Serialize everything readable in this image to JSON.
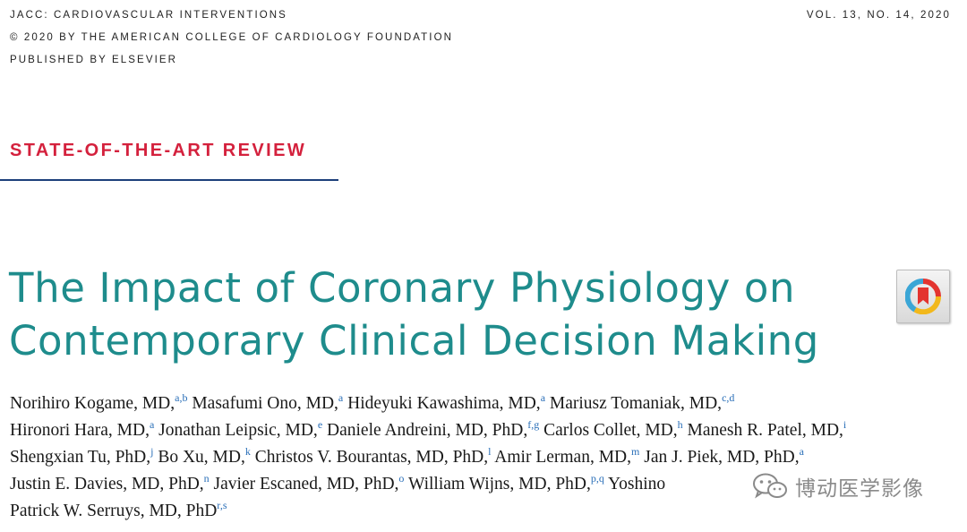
{
  "header": {
    "journal": "JACC: CARDIOVASCULAR INTERVENTIONS",
    "copyright": "© 2020 BY THE AMERICAN COLLEGE OF CARDIOLOGY FOUNDATION",
    "publisher": "PUBLISHED BY ELSEVIER",
    "volume": "VOL. 13, NO. 14, 2020"
  },
  "article": {
    "section": "STATE-OF-THE-ART REVIEW",
    "title_line1": "The Impact of Coronary Physiology on",
    "title_line2": "Contemporary Clinical Decision Making"
  },
  "authors": [
    {
      "text": "Norihiro Kogame, MD,",
      "sup": "a,b"
    },
    {
      "text": "Masafumi Ono, MD,",
      "sup": "a"
    },
    {
      "text": "Hideyuki Kawashima, MD,",
      "sup": "a"
    },
    {
      "text": "Mariusz Tomaniak, MD,",
      "sup": "c,d"
    },
    {
      "text": "Hironori Hara, MD,",
      "sup": "a"
    },
    {
      "text": "Jonathan Leipsic, MD,",
      "sup": "e"
    },
    {
      "text": "Daniele Andreini, MD, PhD,",
      "sup": "f,g"
    },
    {
      "text": "Carlos Collet, MD,",
      "sup": "h"
    },
    {
      "text": "Manesh R. Patel, MD,",
      "sup": "i"
    },
    {
      "text": "Shengxian Tu, PhD,",
      "sup": "j"
    },
    {
      "text": "Bo Xu, MD,",
      "sup": "k"
    },
    {
      "text": "Christos V. Bourantas, MD, PhD,",
      "sup": "l"
    },
    {
      "text": "Amir Lerman, MD,",
      "sup": "m"
    },
    {
      "text": "Jan J. Piek, MD, PhD,",
      "sup": "a"
    },
    {
      "text": "Justin E. Davies, MD, PhD,",
      "sup": "n"
    },
    {
      "text": "Javier Escaned, MD, PhD,",
      "sup": "o"
    },
    {
      "text": "William Wijns, MD, PhD,",
      "sup": "p,q"
    },
    {
      "text": "Yoshino",
      "sup": ""
    },
    {
      "text": "Patrick W. Serruys, MD, PhD",
      "sup": "r,s"
    }
  ],
  "crossmark": {
    "icon": "crossmark-icon",
    "colors": [
      "#e3342f",
      "#f2b81c",
      "#3ba6d6"
    ]
  },
  "watermark": {
    "icon": "wechat-icon",
    "text": "博动医学影像"
  }
}
